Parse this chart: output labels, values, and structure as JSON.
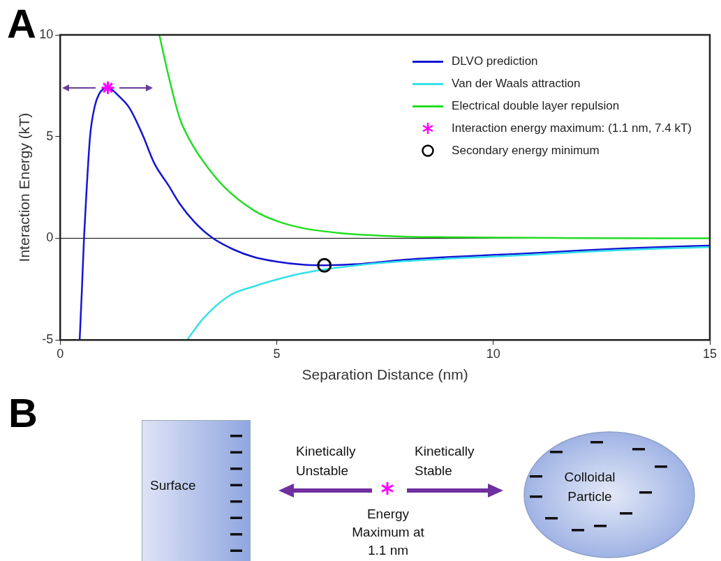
{
  "chart_data": {
    "type": "line",
    "xlabel": "Separation Distance (nm)",
    "ylabel": "Interaction Energy (kT)",
    "xlim": [
      0,
      15
    ],
    "ylim": [
      -5,
      10
    ],
    "xticks": [
      0,
      5,
      10,
      15
    ],
    "yticks": [
      -5,
      0,
      5,
      10
    ],
    "grid": false,
    "legend": "top right",
    "series": [
      {
        "name": "DLVO prediction",
        "color": "#1414d2",
        "x": [
          0.45,
          0.5,
          0.55,
          0.6,
          0.69,
          0.8,
          0.9,
          1.0,
          1.1,
          1.2,
          1.35,
          1.6,
          1.9,
          2.17,
          2.5,
          2.76,
          3.1,
          3.5,
          4.0,
          4.48,
          5.0,
          5.6,
          6.1,
          7,
          8,
          9,
          10,
          11,
          12,
          13,
          14,
          15
        ],
        "values": [
          -5,
          -2.6,
          0,
          2,
          5,
          6.5,
          7.1,
          7.35,
          7.4,
          7.3,
          7.0,
          6.4,
          5.1,
          3.7,
          2.6,
          1.7,
          0.8,
          0.04,
          -0.55,
          -0.93,
          -1.15,
          -1.3,
          -1.33,
          -1.25,
          -1.05,
          -0.92,
          -0.82,
          -0.72,
          -0.6,
          -0.5,
          -0.42,
          -0.36
        ]
      },
      {
        "name": "Van der Waals attraction",
        "color": "#33e0ea",
        "x": [
          2.93,
          3.3,
          3.9,
          4.5,
          5.05,
          5.6,
          6.2,
          7,
          8,
          9,
          10,
          11,
          12,
          13,
          14,
          15
        ],
        "values": [
          -5,
          -3.95,
          -2.83,
          -2.35,
          -2.0,
          -1.72,
          -1.5,
          -1.3,
          -1.12,
          -1.0,
          -0.9,
          -0.8,
          -0.68,
          -0.58,
          -0.5,
          -0.43
        ]
      },
      {
        "name": "Electrical double layer repulsion",
        "color": "#22dd22",
        "x": [
          2.29,
          2.5,
          2.76,
          3.0,
          3.33,
          3.8,
          4.48,
          5.0,
          5.6,
          6.5,
          7.3,
          8,
          9,
          10,
          12,
          15
        ],
        "values": [
          10,
          8.0,
          5.9,
          4.8,
          3.7,
          2.5,
          1.36,
          0.85,
          0.5,
          0.25,
          0.14,
          0.08,
          0.05,
          0.03,
          0.01,
          0
        ]
      },
      {
        "name": "Interaction energy maximum: (1.1 nm, 7.4 kT)",
        "type": "scatter",
        "marker": "cross",
        "color": "#ff00ff",
        "x": [
          1.1
        ],
        "values": [
          7.4
        ]
      },
      {
        "name": "Secondary energy minimum",
        "type": "scatter",
        "marker": "circle",
        "color": "#000000",
        "x": [
          6.1
        ],
        "values": [
          -1.33
        ]
      }
    ],
    "ref_lines": [
      {
        "axis": "y",
        "value": 0,
        "color": "#000000"
      }
    ],
    "annotations": [
      "A",
      "B",
      "Surface",
      "Kinetically Unstable",
      "Kinetically Stable",
      "Energy Maximum at 1.1 nm",
      "Colloidal Particle"
    ]
  }
}
